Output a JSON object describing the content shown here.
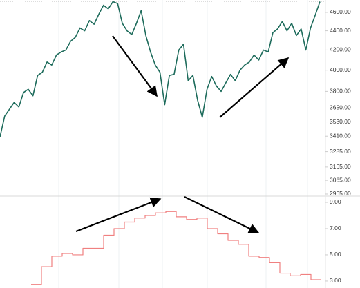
{
  "chart_data": [
    {
      "type": "line",
      "color": "#1d6b5b",
      "log": true,
      "values": [
        3405,
        3580,
        3640,
        3700,
        3660,
        3790,
        3820,
        3760,
        3950,
        3980,
        4080,
        4050,
        4150,
        4180,
        4200,
        4290,
        4330,
        4430,
        4400,
        4510,
        4470,
        4580,
        4680,
        4640,
        4720,
        4700,
        4480,
        4400,
        4360,
        4480,
        4620,
        4350,
        4180,
        4050,
        3980,
        3680,
        3950,
        3960,
        4200,
        4260,
        3900,
        3950,
        3720,
        3570,
        3820,
        3940,
        3850,
        3800,
        3880,
        3960,
        3900,
        4000,
        4050,
        4080,
        4150,
        4100,
        4200,
        4180,
        4380,
        4420,
        4500,
        4400,
        4480,
        4350,
        4420,
        4200,
        4430,
        4570,
        4720
      ],
      "ylim": [
        2955,
        4740
      ],
      "yticks": [
        {
          "value": 2965,
          "label": "2965.00"
        },
        {
          "value": 3065,
          "label": "3065.00"
        },
        {
          "value": 3165,
          "label": "3165.00"
        },
        {
          "value": 3285,
          "label": "3285.00"
        },
        {
          "value": 3410,
          "label": "3410.00"
        },
        {
          "value": 3530,
          "label": "3530.00"
        },
        {
          "value": 3650,
          "label": "3650.00"
        },
        {
          "value": 3800,
          "label": "3800.00"
        },
        {
          "value": 4000,
          "label": "4000.00"
        },
        {
          "value": 4200,
          "label": "4200.00"
        },
        {
          "value": 4400,
          "label": "4400.00"
        },
        {
          "value": 4600,
          "label": "4600.00"
        }
      ]
    },
    {
      "type": "step",
      "color": "#f08080",
      "log": false,
      "values": [
        2.75,
        4.1,
        4.9,
        5.1,
        5.0,
        5.5,
        5.5,
        6.5,
        7.0,
        7.5,
        7.8,
        8.0,
        8.2,
        8.3,
        7.9,
        7.7,
        7.8,
        7.0,
        6.6,
        6.1,
        5.8,
        4.9,
        4.8,
        4.4,
        3.6,
        3.4,
        3.5,
        3.1
      ],
      "ylim": [
        2.47,
        9.42
      ],
      "yticks": [
        {
          "value": 3,
          "label": "3.00"
        },
        {
          "value": 5,
          "label": "5.00"
        },
        {
          "value": 7,
          "label": "7.00"
        },
        {
          "value": 9,
          "label": "9.00"
        }
      ]
    }
  ]
}
